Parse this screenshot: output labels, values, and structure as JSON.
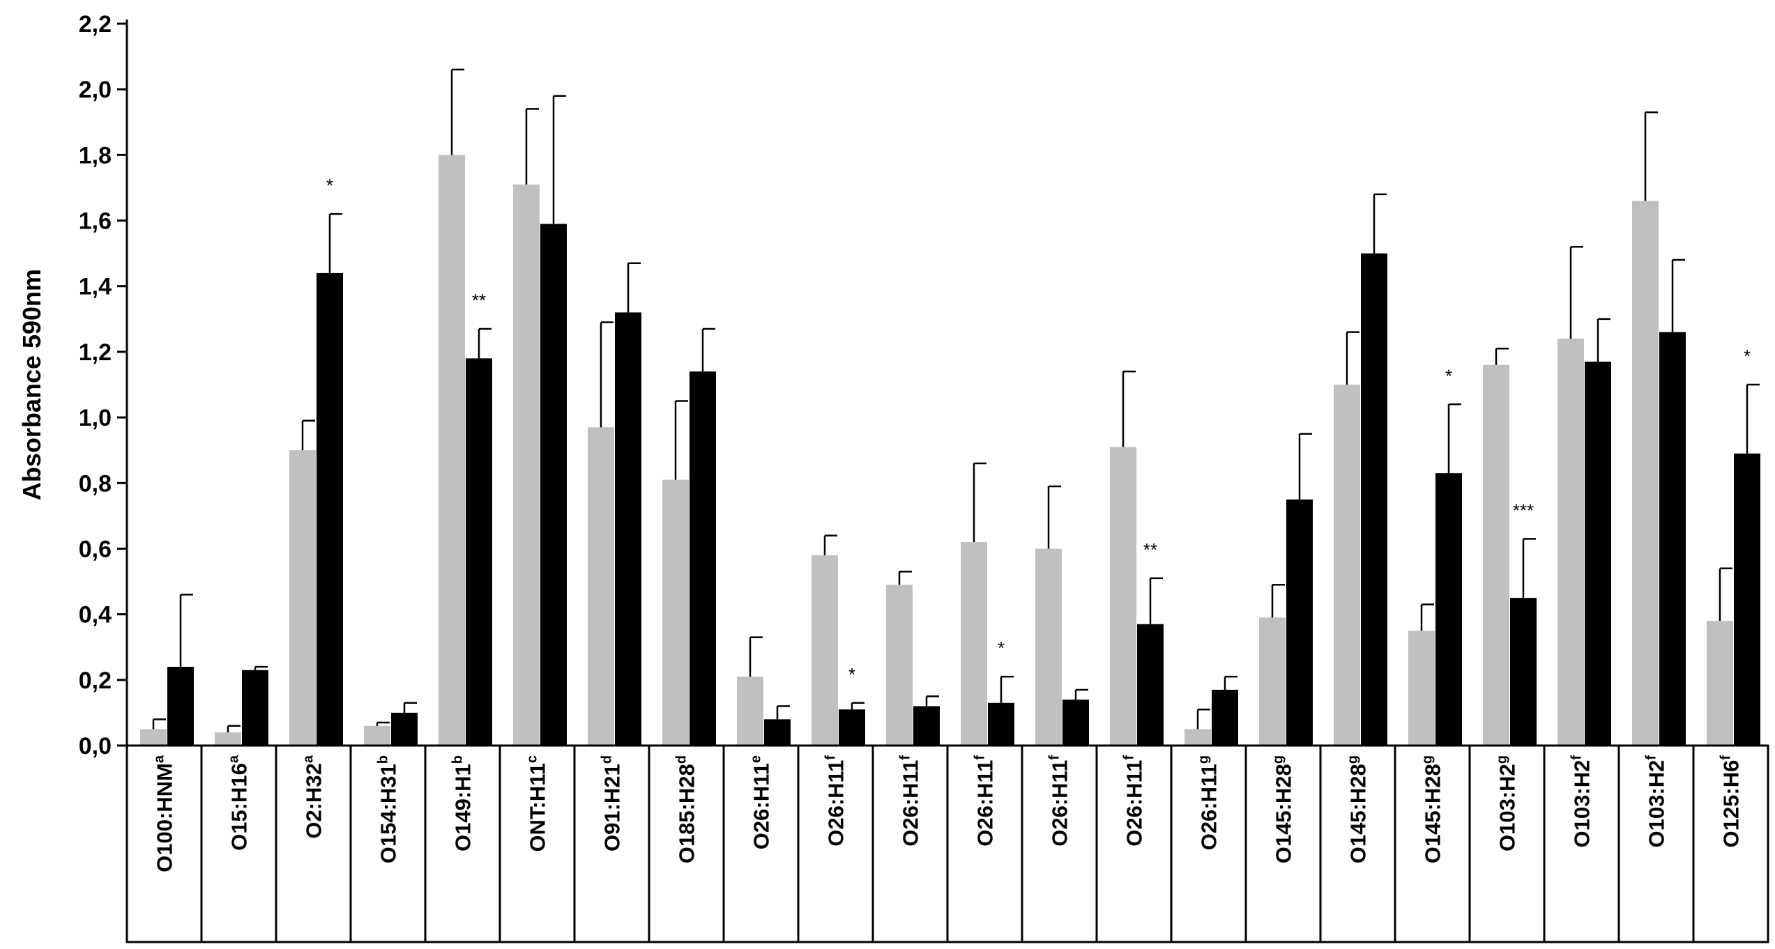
{
  "chart_data": {
    "type": "bar",
    "title": "",
    "xlabel": "",
    "ylabel": "Absorbance 590nm",
    "ylim": [
      0,
      2.2
    ],
    "yticks": [
      "0,0",
      "0,2",
      "0,4",
      "0,6",
      "0,8",
      "1,0",
      "1,2",
      "1,4",
      "1,6",
      "1,8",
      "2,0",
      "2,2"
    ],
    "grid": false,
    "legend": "none",
    "colors": {
      "series1": "#c0c0c0",
      "series2": "#000000",
      "axis": "#000000"
    },
    "categories": [
      {
        "label": "O100:HNM",
        "sup": "a"
      },
      {
        "label": "O15:H16",
        "sup": "a"
      },
      {
        "label": "O2:H32",
        "sup": "a"
      },
      {
        "label": "O154:H31",
        "sup": "b"
      },
      {
        "label": "O149:H1",
        "sup": "b"
      },
      {
        "label": "ONT:H11",
        "sup": "c"
      },
      {
        "label": "O91:H21",
        "sup": "d"
      },
      {
        "label": "O185:H28",
        "sup": "d"
      },
      {
        "label": "O26:H11",
        "sup": "e"
      },
      {
        "label": "O26:H11",
        "sup": "f"
      },
      {
        "label": "O26:H11",
        "sup": "f"
      },
      {
        "label": "O26:H11",
        "sup": "f"
      },
      {
        "label": "O26:H11",
        "sup": "f"
      },
      {
        "label": "O26:H11",
        "sup": "f"
      },
      {
        "label": "O26:H11",
        "sup": "g"
      },
      {
        "label": "O145:H28",
        "sup": "g"
      },
      {
        "label": "O145:H28",
        "sup": "g"
      },
      {
        "label": "O145:H28",
        "sup": "g"
      },
      {
        "label": "O103:H2",
        "sup": "g"
      },
      {
        "label": "O103:H2",
        "sup": "f"
      },
      {
        "label": "O103:H2",
        "sup": "f"
      },
      {
        "label": "O125:H6",
        "sup": "f"
      }
    ],
    "series": [
      {
        "values": [
          0.05,
          0.04,
          0.9,
          0.06,
          1.8,
          1.71,
          0.97,
          0.81,
          0.21,
          0.58,
          0.49,
          0.62,
          0.6,
          0.91,
          0.05,
          0.39,
          1.1,
          0.35,
          1.16,
          1.24,
          1.66,
          0.38
        ],
        "errors": [
          0.03,
          0.02,
          0.09,
          0.01,
          0.26,
          0.23,
          0.32,
          0.24,
          0.12,
          0.06,
          0.04,
          0.24,
          0.19,
          0.23,
          0.06,
          0.1,
          0.16,
          0.08,
          0.05,
          0.28,
          0.27,
          0.16
        ]
      },
      {
        "values": [
          0.24,
          0.23,
          1.44,
          0.1,
          1.18,
          1.59,
          1.32,
          1.14,
          0.08,
          0.11,
          0.12,
          0.13,
          0.14,
          0.37,
          0.17,
          0.75,
          1.5,
          0.83,
          0.45,
          1.17,
          1.26,
          0.89
        ],
        "errors": [
          0.22,
          0.01,
          0.18,
          0.03,
          0.09,
          0.39,
          0.15,
          0.13,
          0.04,
          0.02,
          0.03,
          0.08,
          0.03,
          0.14,
          0.04,
          0.2,
          0.18,
          0.21,
          0.18,
          0.13,
          0.22,
          0.21
        ],
        "significance": [
          "",
          "",
          "*",
          "",
          "**",
          "",
          "",
          "",
          "",
          "*",
          "",
          "*",
          "",
          "**",
          "",
          "",
          "",
          "*",
          "***",
          "",
          "",
          "*"
        ]
      }
    ]
  }
}
